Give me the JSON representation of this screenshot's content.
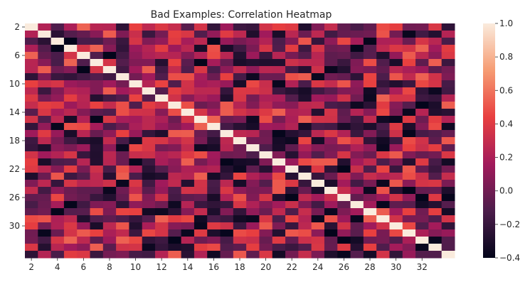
{
  "chart_data": {
    "type": "heatmap",
    "title": "Bad Examples: Correlation Heatmap",
    "x_labels": [
      "2",
      "4",
      "6",
      "8",
      "10",
      "12",
      "14",
      "16",
      "18",
      "20",
      "22",
      "24",
      "26",
      "28",
      "30",
      "32"
    ],
    "y_labels": [
      "2",
      "6",
      "10",
      "14",
      "18",
      "22",
      "26",
      "30"
    ],
    "n": 33,
    "labels_start": 2,
    "x_label_step": 2,
    "y_label_step": 4,
    "diagonal_value": 1.0,
    "value_range": [
      -0.4,
      1.0
    ],
    "colorbar": {
      "ticks": [
        1.0,
        0.8,
        0.6,
        0.4,
        0.2,
        0.0,
        -0.2,
        -0.4
      ],
      "tick_labels": [
        "1.0",
        "0.8",
        "0.6",
        "0.4",
        "0.2",
        "0.0",
        "−0.2",
        "−0.4"
      ]
    },
    "colormap": "rocket",
    "colormap_stops": [
      "#03051a",
      "#4c1d4b",
      "#a11a5b",
      "#e83f3f",
      "#f69c73",
      "#faebdd"
    ],
    "off_diagonal_values": "approx., uniformly distributed in [-0.4, 0.55]"
  }
}
